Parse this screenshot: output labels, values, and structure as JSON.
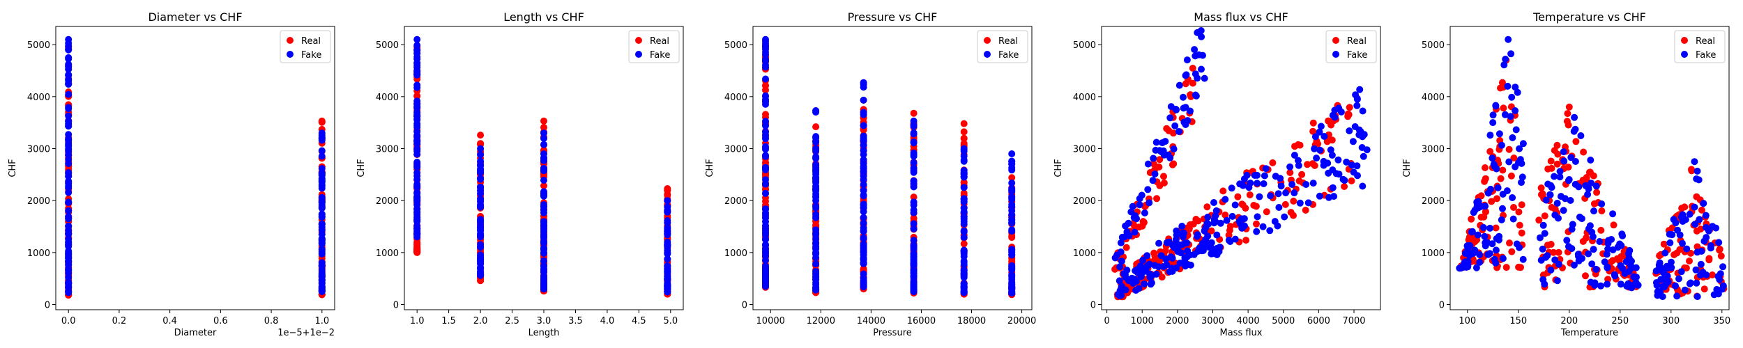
{
  "figure": {
    "colors": {
      "real": "#ff0000",
      "fake": "#0000ff",
      "axes": "#000000",
      "background": "#ffffff"
    }
  },
  "chart_data": [
    {
      "type": "scatter",
      "title": "Diameter vs CHF",
      "xlabel": "Diameter",
      "ylabel": "CHF",
      "xlim": [
        -0.05,
        1.05
      ],
      "ylim": [
        -100,
        5350
      ],
      "xticks": [
        0.0,
        0.2,
        0.4,
        0.6,
        0.8,
        1.0
      ],
      "xtick_labels": [
        "0.0",
        "0.2",
        "0.4",
        "0.6",
        "0.8",
        "1.0"
      ],
      "yticks": [
        0,
        1000,
        2000,
        3000,
        4000,
        5000
      ],
      "ytick_labels": [
        "0",
        "1000",
        "2000",
        "3000",
        "4000",
        "5000"
      ],
      "offset_label": "1e−5+1e−2",
      "legend": {
        "placement": "top-right",
        "entries": [
          "Real",
          "Fake"
        ]
      },
      "series": [
        {
          "name": "Real",
          "color": "#ff0000",
          "columns": [
            {
              "x": 0.0,
              "lo": 180,
              "hi": 4950,
              "n": 90
            },
            {
              "x": 1.0,
              "lo": 190,
              "hi": 3530,
              "n": 70
            }
          ]
        },
        {
          "name": "Fake",
          "color": "#0000ff",
          "columns": [
            {
              "x": 0.0,
              "lo": 230,
              "hi": 5100,
              "n": 95
            },
            {
              "x": 1.0,
              "lo": 250,
              "hi": 3300,
              "n": 70
            }
          ]
        }
      ]
    },
    {
      "type": "scatter",
      "title": "Length vs CHF",
      "xlabel": "Length",
      "ylabel": "CHF",
      "xlim": [
        0.8,
        5.2
      ],
      "ylim": [
        -100,
        5350
      ],
      "xticks": [
        1.0,
        1.5,
        2.0,
        2.5,
        3.0,
        3.5,
        4.0,
        4.5,
        5.0
      ],
      "xtick_labels": [
        "1.0",
        "1.5",
        "2.0",
        "2.5",
        "3.0",
        "3.5",
        "4.0",
        "4.5",
        "5.0"
      ],
      "yticks": [
        0,
        1000,
        2000,
        3000,
        4000,
        5000
      ],
      "ytick_labels": [
        "0",
        "1000",
        "2000",
        "3000",
        "4000",
        "5000"
      ],
      "legend": {
        "placement": "top-right",
        "entries": [
          "Real",
          "Fake"
        ]
      },
      "series": [
        {
          "name": "Real",
          "color": "#ff0000",
          "columns": [
            {
              "x": 1.0,
              "lo": 1000,
              "hi": 4950,
              "n": 80
            },
            {
              "x": 2.0,
              "lo": 460,
              "hi": 3260,
              "n": 70
            },
            {
              "x": 3.0,
              "lo": 260,
              "hi": 3530,
              "n": 70
            },
            {
              "x": 4.95,
              "lo": 200,
              "hi": 2230,
              "n": 55
            }
          ]
        },
        {
          "name": "Fake",
          "color": "#0000ff",
          "columns": [
            {
              "x": 1.0,
              "lo": 1300,
              "hi": 5100,
              "n": 85
            },
            {
              "x": 2.0,
              "lo": 560,
              "hi": 3000,
              "n": 70
            },
            {
              "x": 3.0,
              "lo": 300,
              "hi": 3300,
              "n": 70
            },
            {
              "x": 4.95,
              "lo": 240,
              "hi": 2000,
              "n": 55
            }
          ]
        }
      ]
    },
    {
      "type": "scatter",
      "title": "Pressure vs CHF",
      "xlabel": "Pressure",
      "ylabel": "CHF",
      "xlim": [
        9300,
        20400
      ],
      "ylim": [
        -100,
        5350
      ],
      "xticks": [
        10000,
        12000,
        14000,
        16000,
        18000,
        20000
      ],
      "xtick_labels": [
        "10000",
        "12000",
        "14000",
        "16000",
        "18000",
        "20000"
      ],
      "yticks": [
        0,
        1000,
        2000,
        3000,
        4000,
        5000
      ],
      "ytick_labels": [
        "0",
        "1000",
        "2000",
        "3000",
        "4000",
        "5000"
      ],
      "legend": {
        "placement": "top-right",
        "entries": [
          "Real",
          "Fake"
        ]
      },
      "series": [
        {
          "name": "Real",
          "color": "#ff0000",
          "columns": [
            {
              "x": 9800,
              "lo": 330,
              "hi": 4980,
              "n": 80
            },
            {
              "x": 11800,
              "lo": 230,
              "hi": 3420,
              "n": 65
            },
            {
              "x": 13700,
              "lo": 300,
              "hi": 3930,
              "n": 65
            },
            {
              "x": 15700,
              "lo": 220,
              "hi": 3680,
              "n": 65
            },
            {
              "x": 17700,
              "lo": 200,
              "hi": 3480,
              "n": 60
            },
            {
              "x": 19600,
              "lo": 190,
              "hi": 2440,
              "n": 55
            }
          ]
        },
        {
          "name": "Fake",
          "color": "#0000ff",
          "columns": [
            {
              "x": 9800,
              "lo": 350,
              "hi": 5100,
              "n": 80
            },
            {
              "x": 11800,
              "lo": 280,
              "hi": 3730,
              "n": 65
            },
            {
              "x": 13700,
              "lo": 340,
              "hi": 4270,
              "n": 65
            },
            {
              "x": 15700,
              "lo": 250,
              "hi": 3530,
              "n": 65
            },
            {
              "x": 17700,
              "lo": 230,
              "hi": 3000,
              "n": 60
            },
            {
              "x": 19600,
              "lo": 220,
              "hi": 2900,
              "n": 55
            }
          ]
        }
      ]
    },
    {
      "type": "scatter",
      "title": "Mass flux vs CHF",
      "xlabel": "Mass flux",
      "ylabel": "CHF",
      "xlim": [
        -150,
        7750
      ],
      "ylim": [
        -100,
        5350
      ],
      "xticks": [
        0,
        1000,
        2000,
        3000,
        4000,
        5000,
        6000,
        7000
      ],
      "xtick_labels": [
        "0",
        "1000",
        "2000",
        "3000",
        "4000",
        "5000",
        "6000",
        "7000"
      ],
      "yticks": [
        0,
        1000,
        2000,
        3000,
        4000,
        5000
      ],
      "ytick_labels": [
        "0",
        "1000",
        "2000",
        "3000",
        "4000",
        "5000"
      ],
      "legend": {
        "placement": "top-right",
        "entries": [
          "Real",
          "Fake"
        ]
      },
      "series": [
        {
          "name": "Real",
          "color": "#ff0000",
          "bands": [
            {
              "x": [
                200,
                2500
              ],
              "y": [
                600,
                4200
              ],
              "spread": 500,
              "n": 60
            },
            {
              "x": [
                300,
                7000
              ],
              "y": [
                300,
                3200
              ],
              "spread": 700,
              "n": 140
            },
            {
              "x": [
                300,
                3000
              ],
              "y": [
                200,
                1500
              ],
              "spread": 300,
              "n": 60
            }
          ]
        },
        {
          "name": "Fake",
          "color": "#0000ff",
          "bands": [
            {
              "x": [
                200,
                2800
              ],
              "y": [
                700,
                5000
              ],
              "spread": 550,
              "n": 70
            },
            {
              "x": [
                300,
                7400
              ],
              "y": [
                300,
                3300
              ],
              "spread": 700,
              "n": 160
            },
            {
              "x": [
                300,
                3200
              ],
              "y": [
                200,
                1400
              ],
              "spread": 300,
              "n": 70
            }
          ]
        }
      ]
    },
    {
      "type": "scatter",
      "title": "Temperature vs CHF",
      "xlabel": "Temperature",
      "ylabel": "CHF",
      "xlim": [
        83,
        357
      ],
      "ylim": [
        -100,
        5350
      ],
      "xticks": [
        100,
        150,
        200,
        250,
        300,
        350
      ],
      "xtick_labels": [
        "100",
        "150",
        "200",
        "250",
        "300",
        "350"
      ],
      "yticks": [
        0,
        1000,
        2000,
        3000,
        4000,
        5000
      ],
      "ytick_labels": [
        "0",
        "1000",
        "2000",
        "3000",
        "4000",
        "5000"
      ],
      "legend": {
        "placement": "top-right",
        "entries": [
          "Real",
          "Fake"
        ]
      },
      "series": [
        {
          "name": "Real",
          "color": "#ff0000",
          "clusters": [
            {
              "x": [
                92,
                155
              ],
              "peak": 138,
              "lo": 700,
              "hi": 4700,
              "n": 90
            },
            {
              "x": [
                170,
                268
              ],
              "peak": 200,
              "lo": 300,
              "hi": 3800,
              "n": 110
            },
            {
              "x": [
                285,
                352
              ],
              "peak": 320,
              "lo": 150,
              "hi": 2600,
              "n": 80
            }
          ]
        },
        {
          "name": "Fake",
          "color": "#0000ff",
          "clusters": [
            {
              "x": [
                92,
                155
              ],
              "peak": 140,
              "lo": 700,
              "hi": 5100,
              "n": 95
            },
            {
              "x": [
                170,
                268
              ],
              "peak": 205,
              "lo": 300,
              "hi": 3600,
              "n": 115
            },
            {
              "x": [
                285,
                352
              ],
              "peak": 323,
              "lo": 150,
              "hi": 2750,
              "n": 85
            }
          ]
        }
      ]
    }
  ]
}
